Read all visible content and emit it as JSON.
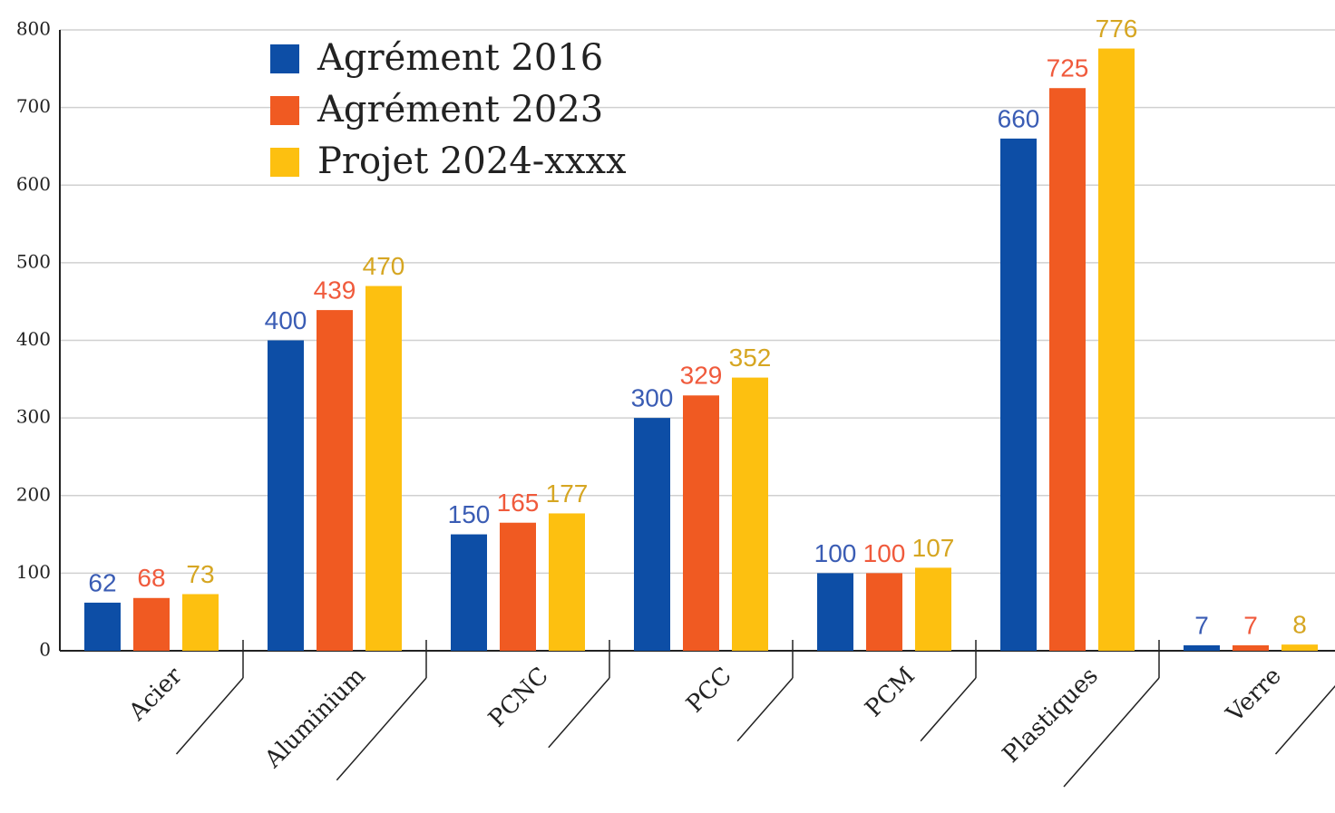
{
  "chart_data": {
    "type": "bar",
    "categories": [
      "Acier",
      "Aluminium",
      "PCNC",
      "PCC",
      "PCM",
      "Plastiques",
      "Verre"
    ],
    "series": [
      {
        "name": "Agrément 2016",
        "color": "#0d4ea6",
        "label_color": "#3a5cb4",
        "values": [
          62,
          400,
          150,
          300,
          100,
          660,
          7
        ]
      },
      {
        "name": "Agrément 2023",
        "color": "#f05a22",
        "label_color": "#f05a3c",
        "values": [
          68,
          439,
          165,
          329,
          100,
          725,
          7
        ]
      },
      {
        "name": "Projet 2024-xxxx",
        "color": "#fdc010",
        "label_color": "#d6a622",
        "values": [
          73,
          470,
          177,
          352,
          107,
          776,
          8
        ]
      }
    ],
    "ylim": [
      0,
      800
    ],
    "yticks": [
      0,
      100,
      200,
      300,
      400,
      500,
      600,
      700,
      800
    ],
    "grid": true,
    "legend": "top-left"
  }
}
